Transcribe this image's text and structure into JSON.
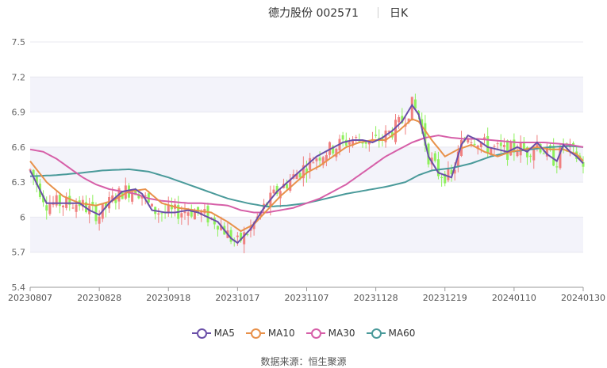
{
  "header": {
    "stock_name": "德力股份",
    "stock_code": "002571",
    "period": "日K"
  },
  "source": {
    "label": "数据来源：",
    "value": "恒生聚源"
  },
  "colors": {
    "up": "#f08080",
    "down": "#8ef05c",
    "ma5": "#6a4fa8",
    "ma10": "#e8914a",
    "ma30": "#d65fa8",
    "ma60": "#4a9a9a",
    "grid": "#e8e8f0",
    "band": "#f3f3fa"
  },
  "chart_data": {
    "type": "candlestick",
    "title": "",
    "y_range": [
      5.4,
      7.5
    ],
    "y_ticks": [
      "5.4",
      "5.7",
      "6",
      "6.3",
      "6.6",
      "6.9",
      "7.2",
      "7.5"
    ],
    "x_ticks": [
      "20230807",
      "20230828",
      "20230918",
      "20231017",
      "20231107",
      "20231128",
      "20231219",
      "20240110",
      "20240130"
    ],
    "legend": [
      "MA5",
      "MA10",
      "MA30",
      "MA60"
    ],
    "legend_position": "bottom",
    "approx_trading_days": 120,
    "ma_series": {
      "MA5": [
        [
          0,
          6.4
        ],
        [
          5,
          6.12
        ],
        [
          10,
          6.12
        ],
        [
          15,
          6.12
        ],
        [
          18,
          6.06
        ],
        [
          21,
          6.02
        ],
        [
          24,
          6.12
        ],
        [
          28,
          6.22
        ],
        [
          32,
          6.24
        ],
        [
          34,
          6.2
        ],
        [
          37,
          6.06
        ],
        [
          41,
          6.04
        ],
        [
          44,
          6.04
        ],
        [
          48,
          6.06
        ],
        [
          51,
          6.04
        ],
        [
          54,
          6.0
        ],
        [
          57,
          5.96
        ],
        [
          61,
          5.82
        ],
        [
          63,
          5.78
        ],
        [
          67,
          5.9
        ],
        [
          71,
          6.08
        ],
        [
          75,
          6.22
        ],
        [
          79,
          6.32
        ],
        [
          83,
          6.42
        ],
        [
          87,
          6.52
        ],
        [
          91,
          6.58
        ],
        [
          95,
          6.64
        ],
        [
          98,
          6.66
        ],
        [
          101,
          6.66
        ],
        [
          104,
          6.64
        ],
        [
          107,
          6.68
        ],
        [
          110,
          6.74
        ],
        [
          113,
          6.82
        ],
        [
          116,
          6.96
        ],
        [
          118,
          6.88
        ],
        [
          121,
          6.52
        ],
        [
          124,
          6.38
        ],
        [
          128,
          6.34
        ],
        [
          131,
          6.62
        ],
        [
          133,
          6.7
        ],
        [
          136,
          6.66
        ],
        [
          139,
          6.6
        ],
        [
          142,
          6.58
        ],
        [
          145,
          6.56
        ],
        [
          148,
          6.6
        ],
        [
          151,
          6.56
        ],
        [
          154,
          6.64
        ],
        [
          157,
          6.54
        ],
        [
          160,
          6.48
        ],
        [
          162,
          6.62
        ],
        [
          164,
          6.56
        ],
        [
          166,
          6.52
        ],
        [
          168,
          6.46
        ]
      ],
      "MA10": [
        [
          0,
          6.48
        ],
        [
          5,
          6.3
        ],
        [
          10,
          6.18
        ],
        [
          15,
          6.12
        ],
        [
          20,
          6.1
        ],
        [
          25,
          6.14
        ],
        [
          30,
          6.22
        ],
        [
          35,
          6.24
        ],
        [
          40,
          6.12
        ],
        [
          45,
          6.08
        ],
        [
          50,
          6.06
        ],
        [
          55,
          6.04
        ],
        [
          60,
          5.96
        ],
        [
          64,
          5.88
        ],
        [
          68,
          5.94
        ],
        [
          72,
          6.06
        ],
        [
          76,
          6.18
        ],
        [
          80,
          6.28
        ],
        [
          84,
          6.38
        ],
        [
          88,
          6.44
        ],
        [
          92,
          6.52
        ],
        [
          96,
          6.6
        ],
        [
          100,
          6.64
        ],
        [
          104,
          6.66
        ],
        [
          108,
          6.66
        ],
        [
          112,
          6.74
        ],
        [
          116,
          6.84
        ],
        [
          118,
          6.82
        ],
        [
          122,
          6.66
        ],
        [
          126,
          6.52
        ],
        [
          130,
          6.58
        ],
        [
          134,
          6.62
        ],
        [
          138,
          6.56
        ],
        [
          142,
          6.52
        ],
        [
          146,
          6.56
        ],
        [
          150,
          6.58
        ],
        [
          154,
          6.6
        ],
        [
          158,
          6.58
        ],
        [
          162,
          6.58
        ],
        [
          166,
          6.54
        ],
        [
          168,
          6.48
        ]
      ],
      "MA30": [
        [
          0,
          6.58
        ],
        [
          4,
          6.56
        ],
        [
          8,
          6.5
        ],
        [
          12,
          6.42
        ],
        [
          16,
          6.34
        ],
        [
          20,
          6.28
        ],
        [
          24,
          6.24
        ],
        [
          28,
          6.22
        ],
        [
          32,
          6.2
        ],
        [
          36,
          6.16
        ],
        [
          40,
          6.14
        ],
        [
          44,
          6.13
        ],
        [
          48,
          6.12
        ],
        [
          52,
          6.12
        ],
        [
          56,
          6.11
        ],
        [
          60,
          6.1
        ],
        [
          64,
          6.06
        ],
        [
          68,
          6.04
        ],
        [
          72,
          6.04
        ],
        [
          76,
          6.06
        ],
        [
          80,
          6.08
        ],
        [
          84,
          6.12
        ],
        [
          88,
          6.16
        ],
        [
          92,
          6.22
        ],
        [
          96,
          6.28
        ],
        [
          100,
          6.36
        ],
        [
          104,
          6.44
        ],
        [
          108,
          6.52
        ],
        [
          112,
          6.58
        ],
        [
          116,
          6.64
        ],
        [
          120,
          6.68
        ],
        [
          124,
          6.7
        ],
        [
          128,
          6.68
        ],
        [
          132,
          6.67
        ],
        [
          136,
          6.67
        ],
        [
          140,
          6.66
        ],
        [
          144,
          6.65
        ],
        [
          148,
          6.64
        ],
        [
          152,
          6.64
        ],
        [
          156,
          6.64
        ],
        [
          160,
          6.63
        ],
        [
          164,
          6.62
        ],
        [
          168,
          6.6
        ]
      ],
      "MA60": [
        [
          0,
          6.35
        ],
        [
          8,
          6.36
        ],
        [
          16,
          6.38
        ],
        [
          22,
          6.4
        ],
        [
          30,
          6.41
        ],
        [
          36,
          6.39
        ],
        [
          42,
          6.34
        ],
        [
          48,
          6.28
        ],
        [
          54,
          6.22
        ],
        [
          60,
          6.16
        ],
        [
          66,
          6.12
        ],
        [
          72,
          6.09
        ],
        [
          78,
          6.1
        ],
        [
          84,
          6.12
        ],
        [
          90,
          6.16
        ],
        [
          96,
          6.2
        ],
        [
          102,
          6.23
        ],
        [
          108,
          6.26
        ],
        [
          114,
          6.3
        ],
        [
          118,
          6.36
        ],
        [
          122,
          6.4
        ],
        [
          128,
          6.42
        ],
        [
          134,
          6.46
        ],
        [
          140,
          6.52
        ],
        [
          146,
          6.56
        ],
        [
          152,
          6.58
        ],
        [
          158,
          6.6
        ],
        [
          164,
          6.61
        ],
        [
          168,
          6.6
        ]
      ]
    }
  }
}
